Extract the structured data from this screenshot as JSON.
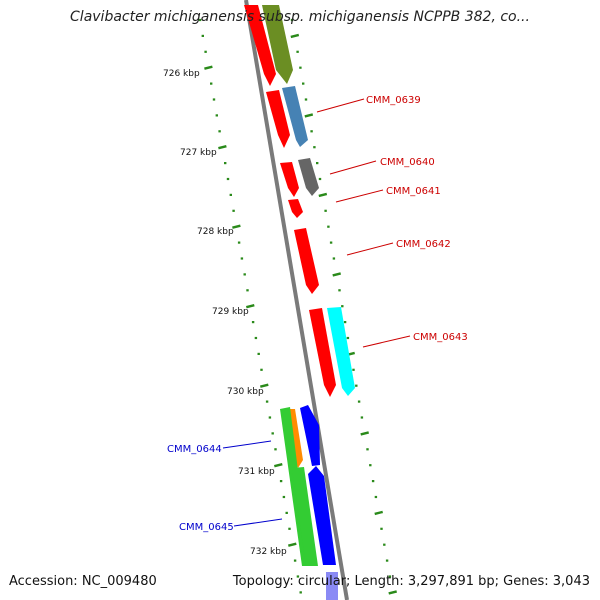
{
  "title": "Clavibacter michiganensis subsp. michiganensis NCPPB 382, co...",
  "footer": {
    "accession": "Accession: NC_009480",
    "summary": "Topology: circular; Length: 3,297,891 bp; Genes: 3,043"
  },
  "ticks": [
    "726 kbp",
    "727 kbp",
    "728 kbp",
    "729 kbp",
    "730 kbp",
    "731 kbp",
    "732 kbp"
  ],
  "gene_labels": [
    {
      "id": "CMM_0639",
      "color": "#cc0000"
    },
    {
      "id": "CMM_0640",
      "color": "#cc0000"
    },
    {
      "id": "CMM_0641",
      "color": "#cc0000"
    },
    {
      "id": "CMM_0642",
      "color": "#cc0000"
    },
    {
      "id": "CMM_0643",
      "color": "#cc0000"
    },
    {
      "id": "CMM_0644",
      "color": "#0000cc"
    },
    {
      "id": "CMM_0645",
      "color": "#0000cc"
    }
  ],
  "colors": {
    "backbone": "#7a7a7a",
    "tick": "#2a8a1a",
    "red_feature": "#ff0000",
    "olive_feature": "#6b8e23",
    "steel_feature": "#4682b4",
    "gray_feature": "#666666",
    "cyan_feature": "#00ffff",
    "green_feature": "#33cc33",
    "orange_feature": "#ff8c00",
    "blue_feature": "#0000ff"
  }
}
